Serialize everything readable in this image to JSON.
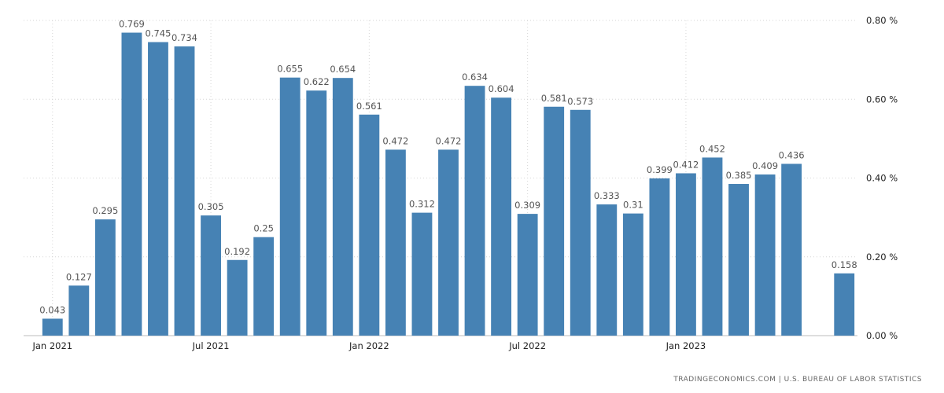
{
  "chart_data": {
    "type": "bar",
    "categories": [
      "Jan 2021",
      "Feb 2021",
      "Mar 2021",
      "Apr 2021",
      "May 2021",
      "Jun 2021",
      "Jul 2021",
      "Aug 2021",
      "Sep 2021",
      "Oct 2021",
      "Nov 2021",
      "Dec 2021",
      "Jan 2022",
      "Feb 2022",
      "Mar 2022",
      "Apr 2022",
      "May 2022",
      "Jun 2022",
      "Jul 2022",
      "Aug 2022",
      "Sep 2022",
      "Oct 2022",
      "Nov 2022",
      "Dec 2022",
      "Jan 2023",
      "Feb 2023",
      "Mar 2023",
      "Apr 2023",
      "May 2023",
      "Jun 2023",
      "Jul 2023"
    ],
    "values": [
      0.043,
      0.127,
      0.295,
      0.769,
      0.745,
      0.734,
      0.305,
      0.192,
      0.25,
      0.655,
      0.622,
      0.654,
      0.561,
      0.472,
      0.312,
      0.472,
      0.634,
      0.604,
      0.309,
      0.581,
      0.573,
      0.333,
      0.31,
      0.399,
      0.412,
      0.452,
      0.385,
      0.409,
      0.436,
      null,
      0.158
    ],
    "value_labels": [
      "0.043",
      "0.127",
      "0.295",
      "0.769",
      "0.745",
      "0.734",
      "0.305",
      "0.192",
      "0.25",
      "0.655",
      "0.622",
      "0.654",
      "0.561",
      "0.472",
      "0.312",
      "0.472",
      "0.634",
      "0.604",
      "0.309",
      "0.581",
      "0.573",
      "0.333",
      "0.31",
      "0.399",
      "0.412",
      "0.452",
      "0.385",
      "0.409",
      "0.436",
      "",
      "0.158"
    ],
    "x_tick_labels": [
      {
        "category": "Jan 2021",
        "label": "Jan 2021"
      },
      {
        "category": "Jul 2021",
        "label": "Jul 2021"
      },
      {
        "category": "Jan 2022",
        "label": "Jan 2022"
      },
      {
        "category": "Jul 2022",
        "label": "Jul 2022"
      },
      {
        "category": "Jan 2023",
        "label": "Jan 2023"
      }
    ],
    "y_ticks": [
      0,
      0.2,
      0.4,
      0.6,
      0.8
    ],
    "y_tick_labels": [
      "0.00 %",
      "0.20 %",
      "0.40 %",
      "0.60 %",
      "0.80 %"
    ],
    "ylim": [
      0,
      0.8
    ],
    "title": "",
    "xlabel": "",
    "ylabel": "",
    "grid": true,
    "y_axis_position": "right",
    "colors": {
      "bar": "#4682b4",
      "grid": "#d6d6d6"
    }
  },
  "footer": {
    "source": "TRADINGECONOMICS.COM  |  U.S. BUREAU OF LABOR STATISTICS"
  }
}
